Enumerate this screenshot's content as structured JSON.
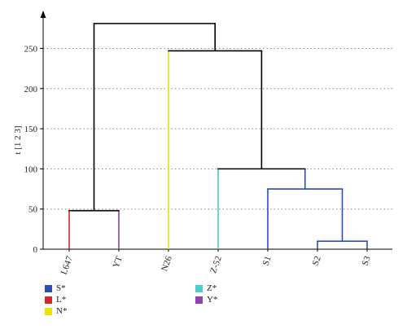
{
  "chart_data": {
    "type": "dendrogram",
    "title": "",
    "xlabel": "",
    "ylabel": "t [1 2 3]",
    "ylim": [
      0,
      290
    ],
    "yticks": [
      0,
      50,
      100,
      150,
      200,
      250
    ],
    "grid": "horizontal-dotted",
    "leaves": [
      {
        "label": "L647",
        "color": "#d62728"
      },
      {
        "label": "YT",
        "color": "#8e44ad"
      },
      {
        "label": "N26",
        "color": "#e6e600"
      },
      {
        "label": "Z-52",
        "color": "#4ecdc4"
      },
      {
        "label": "S1",
        "color": "#2a4db5"
      },
      {
        "label": "S2",
        "color": "#2a4db5"
      },
      {
        "label": "S3",
        "color": "#2a4db5"
      }
    ],
    "merges": [
      {
        "left": "leaf:5",
        "right": "leaf:6",
        "height": 10,
        "color": "#2a4db5"
      },
      {
        "left": "leaf:4",
        "right": "node:0",
        "height": 75,
        "color": "#2a4db5"
      },
      {
        "left": "leaf:3",
        "right": "node:1",
        "height": 100,
        "color": "#000000"
      },
      {
        "left": "leaf:2",
        "right": "node:2",
        "height": 247,
        "color": "#000000"
      },
      {
        "left": "leaf:0",
        "right": "leaf:1",
        "height": 48,
        "color": "#000000"
      },
      {
        "left": "node:4",
        "right": "node:3",
        "height": 281,
        "color": "#000000"
      }
    ],
    "legend_position": "bottom",
    "legend": [
      {
        "label": "S*",
        "color": "#2a4db5"
      },
      {
        "label": "L*",
        "color": "#d62728"
      },
      {
        "label": "N*",
        "color": "#e6e600"
      },
      {
        "label": "Z*",
        "color": "#4ecdc4"
      },
      {
        "label": "Y*",
        "color": "#8e44ad"
      }
    ]
  }
}
